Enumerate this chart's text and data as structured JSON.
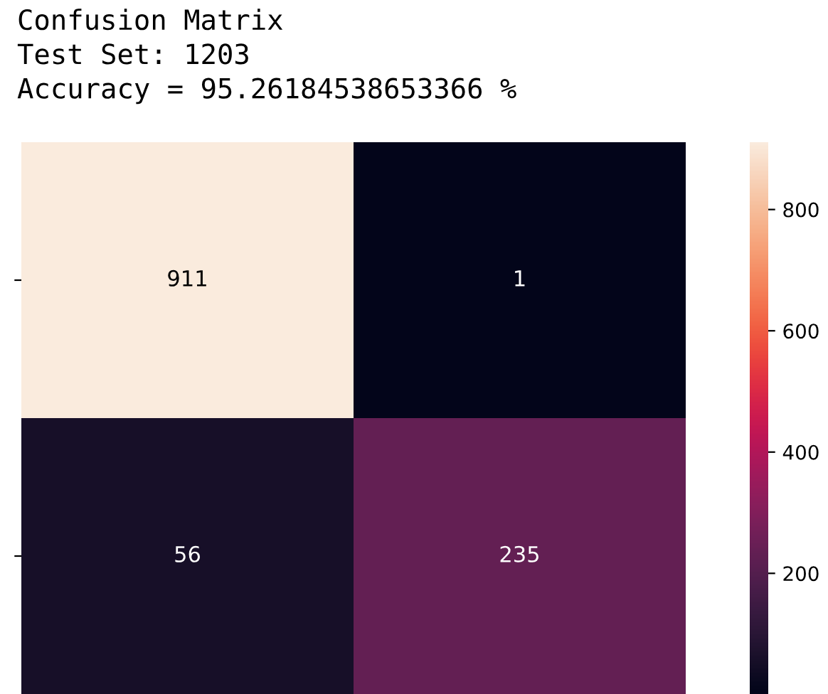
{
  "chart_data": {
    "type": "heatmap",
    "title": "Confusion Matrix\nTest Set: 1203\nAccuracy = 95.26184538653366 %",
    "categories": [
      null,
      null
    ],
    "y_categories": [
      null,
      null
    ],
    "cells": [
      [
        911,
        1
      ],
      [
        56,
        235
      ]
    ],
    "clim": [
      1,
      911
    ],
    "cticks": [
      200,
      400,
      600,
      800
    ],
    "data_labels": true
  }
}
